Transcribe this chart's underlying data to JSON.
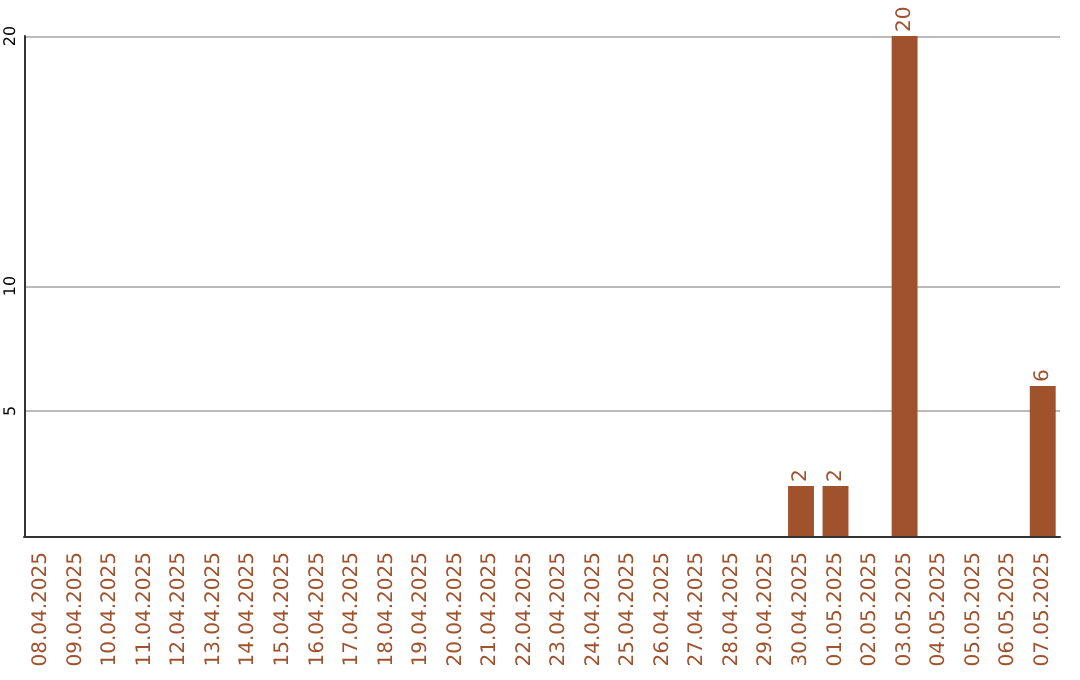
{
  "chart_data": {
    "type": "bar",
    "categories": [
      "08.04.2025",
      "09.04.2025",
      "10.04.2025",
      "11.04.2025",
      "12.04.2025",
      "13.04.2025",
      "14.04.2025",
      "15.04.2025",
      "16.04.2025",
      "17.04.2025",
      "18.04.2025",
      "19.04.2025",
      "20.04.2025",
      "21.04.2025",
      "22.04.2025",
      "23.04.2025",
      "24.04.2025",
      "25.04.2025",
      "26.04.2025",
      "27.04.2025",
      "28.04.2025",
      "29.04.2025",
      "30.04.2025",
      "01.05.2025",
      "02.05.2025",
      "03.05.2025",
      "04.05.2025",
      "05.05.2025",
      "06.05.2025",
      "07.05.2025"
    ],
    "values": [
      0,
      0,
      0,
      0,
      0,
      0,
      0,
      0,
      0,
      0,
      0,
      0,
      0,
      0,
      0,
      0,
      0,
      0,
      0,
      0,
      0,
      0,
      2,
      2,
      0,
      20,
      0,
      0,
      0,
      6
    ],
    "value_labels": [
      null,
      null,
      null,
      null,
      null,
      null,
      null,
      null,
      null,
      null,
      null,
      null,
      null,
      null,
      null,
      null,
      null,
      null,
      null,
      null,
      null,
      null,
      "2",
      "2",
      null,
      "20",
      null,
      null,
      null,
      "6"
    ],
    "color": "#a0522d",
    "ylim": [
      0,
      20
    ],
    "yticks": [
      5,
      10,
      20
    ],
    "grid": "y"
  }
}
